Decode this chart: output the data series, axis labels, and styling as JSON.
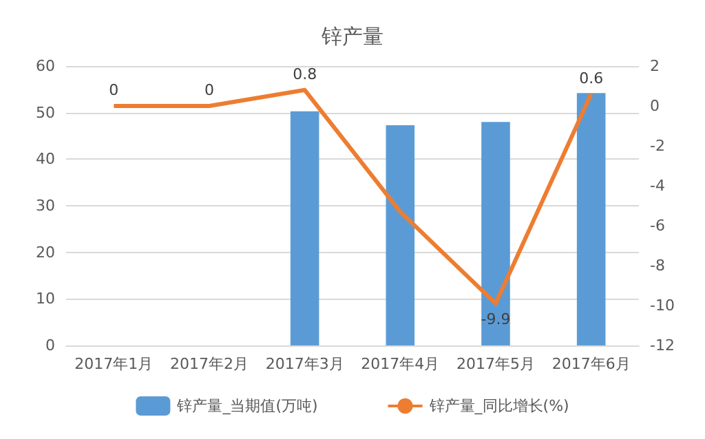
{
  "chart_data": {
    "type": "bar",
    "title": "锌产量",
    "categories": [
      "2017年1月",
      "2017年2月",
      "2017年3月",
      "2017年4月",
      "2017年5月",
      "2017年6月"
    ],
    "series": [
      {
        "name": "锌产量_当期值(万吨)",
        "color": "#5b9bd5",
        "values": [
          null,
          null,
          50.3,
          47.3,
          48,
          54.2
        ]
      },
      {
        "name": "锌产量_同比增长(%)",
        "type": "line",
        "axis": "y2",
        "color": "#ed7d31",
        "marker": "none",
        "values": [
          0,
          0,
          0.8,
          -5.3,
          -9.9,
          0.6
        ],
        "value_labels": [
          "0",
          "0",
          "0.8",
          null,
          "-9.9",
          "0.6"
        ]
      }
    ],
    "ylim": [
      0,
      60
    ],
    "yticks": [
      0,
      10,
      20,
      30,
      40,
      50,
      60
    ],
    "y2lim": [
      -12,
      2
    ],
    "y2ticks": [
      -12,
      -10,
      -8,
      -6,
      -4,
      -2,
      0,
      2
    ],
    "grid": "y",
    "legend": "bottom"
  }
}
